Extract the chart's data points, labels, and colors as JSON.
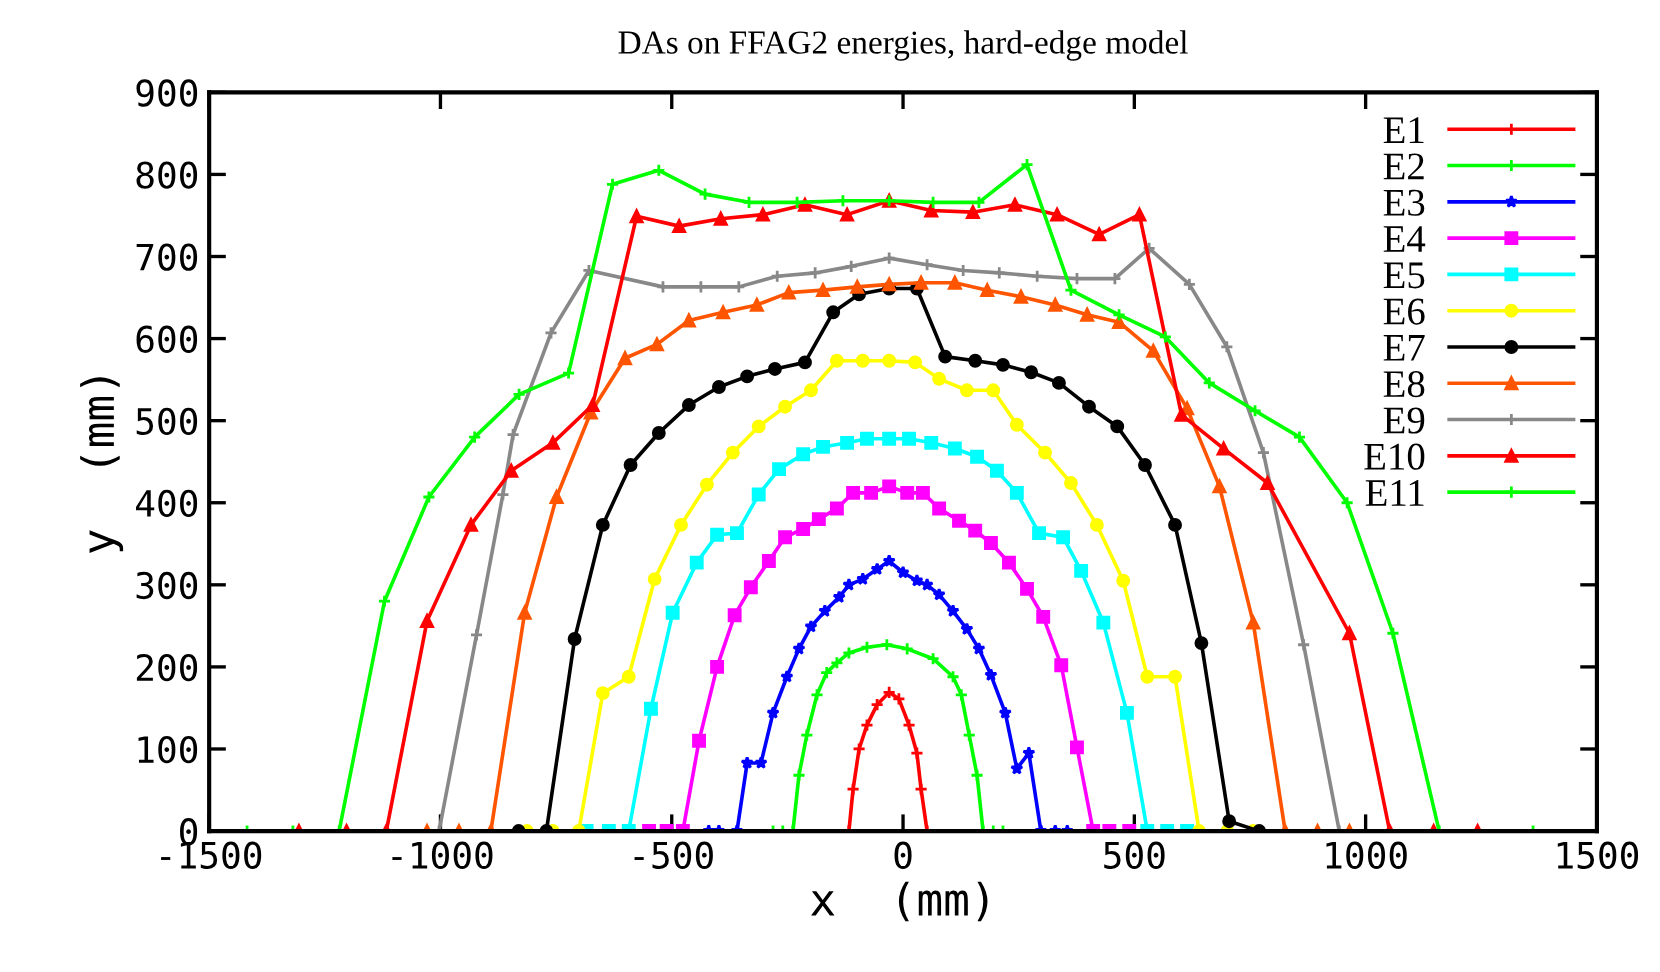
{
  "chart_data": {
    "type": "line",
    "title": "DAs on FFAG2 energies, hard-edge model",
    "xlabel": "x  (mm)",
    "ylabel": "y  (mm)",
    "xlim": [
      -1500,
      1500
    ],
    "xticks": [
      -1500,
      -1000,
      -500,
      0,
      500,
      1000,
      1500
    ],
    "ylim": [
      0,
      900
    ],
    "yticks": [
      0,
      100,
      200,
      300,
      400,
      500,
      600,
      700,
      800,
      900
    ],
    "grid": false,
    "legend": "top right",
    "series": [
      {
        "name": "E1",
        "color": "#ff0000",
        "marker": "cross",
        "x": [
          -117,
          -108,
          -95,
          -78,
          -56,
          -30,
          -9,
          13,
          30,
          39,
          52
        ],
        "values": [
          0,
          51,
          100,
          129,
          154,
          169,
          161,
          129,
          95,
          51,
          0
        ]
      },
      {
        "name": "E2",
        "color": "#00ff00",
        "marker": "cross",
        "x": [
          -281,
          -260,
          -238,
          -225,
          -208,
          -186,
          -165,
          -143,
          -117,
          -78,
          -35,
          9,
          65,
          108,
          126,
          143,
          160,
          173,
          195,
          216
        ],
        "values": [
          0,
          0,
          0,
          68,
          117,
          166,
          193,
          205,
          217,
          224,
          227,
          222,
          210,
          188,
          166,
          117,
          68,
          0,
          0,
          0
        ]
      },
      {
        "name": "E3",
        "color": "#0000ff",
        "marker": "star",
        "x": [
          -420,
          -398,
          -359,
          -337,
          -307,
          -281,
          -251,
          -225,
          -199,
          -169,
          -138,
          -117,
          -87,
          -56,
          -30,
          0,
          30,
          52,
          78,
          108,
          138,
          164,
          190,
          221,
          246,
          272,
          298,
          329,
          355
        ],
        "values": [
          0,
          0,
          0,
          83,
          83,
          144,
          188,
          222,
          249,
          268,
          285,
          300,
          307,
          319,
          329,
          315,
          305,
          300,
          288,
          268,
          246,
          222,
          190,
          144,
          76,
          95,
          0,
          0,
          0
        ]
      },
      {
        "name": "E4",
        "color": "#ff00ff",
        "marker": "square",
        "x": [
          -549,
          -511,
          -476,
          -441,
          -402,
          -364,
          -329,
          -290,
          -255,
          -216,
          -182,
          -143,
          -108,
          -69,
          -30,
          9,
          43,
          78,
          121,
          156,
          190,
          229,
          268,
          303,
          342,
          376,
          411,
          446,
          489
        ],
        "values": [
          0,
          0,
          0,
          110,
          200,
          263,
          297,
          329,
          358,
          368,
          380,
          393,
          412,
          412,
          420,
          412,
          412,
          393,
          378,
          366,
          351,
          327,
          295,
          261,
          202,
          102,
          0,
          0,
          0
        ]
      },
      {
        "name": "E5",
        "color": "#00ffff",
        "marker": "square",
        "x": [
          -684,
          -636,
          -593,
          -545,
          -498,
          -446,
          -402,
          -359,
          -312,
          -268,
          -216,
          -173,
          -121,
          -78,
          -30,
          13,
          61,
          112,
          160,
          203,
          246,
          294,
          346,
          385,
          433,
          484,
          528,
          571,
          614
        ],
        "values": [
          0,
          0,
          0,
          149,
          266,
          327,
          361,
          363,
          410,
          441,
          459,
          468,
          473,
          478,
          478,
          478,
          473,
          466,
          456,
          439,
          412,
          363,
          358,
          317,
          254,
          144,
          0,
          0,
          0
        ]
      },
      {
        "name": "E6",
        "color": "#ffff00",
        "marker": "circle",
        "x": [
          -813,
          -757,
          -701,
          -649,
          -593,
          -537,
          -480,
          -424,
          -368,
          -312,
          -255,
          -199,
          -143,
          -87,
          -30,
          26,
          78,
          138,
          195,
          246,
          307,
          363,
          419,
          476,
          528,
          588,
          640,
          701,
          757
        ],
        "values": [
          0,
          0,
          0,
          168,
          188,
          307,
          373,
          422,
          461,
          493,
          517,
          537,
          573,
          573,
          573,
          571,
          551,
          537,
          537,
          495,
          461,
          424,
          373,
          305,
          188,
          188,
          0,
          0,
          0
        ]
      },
      {
        "name": "E7",
        "color": "#000000",
        "marker": "circle",
        "x": [
          -831,
          -771,
          -710,
          -649,
          -589,
          -528,
          -463,
          -398,
          -337,
          -277,
          -212,
          -151,
          -95,
          -30,
          30,
          91,
          156,
          216,
          277,
          337,
          402,
          463,
          523,
          588,
          645,
          705,
          770
        ],
        "values": [
          0,
          0,
          234,
          373,
          446,
          485,
          519,
          541,
          554,
          563,
          571,
          632,
          654,
          661,
          661,
          578,
          573,
          568,
          559,
          546,
          517,
          493,
          446,
          373,
          229,
          12,
          0
        ]
      },
      {
        "name": "E8",
        "color": "#ff5500",
        "marker": "triangle",
        "x": [
          -1029,
          -960,
          -891,
          -818,
          -749,
          -675,
          -601,
          -532,
          -463,
          -389,
          -316,
          -247,
          -173,
          -99,
          -30,
          39,
          112,
          182,
          255,
          329,
          398,
          467,
          541,
          614,
          684,
          757,
          826,
          896,
          965
        ],
        "values": [
          0,
          0,
          0,
          266,
          407,
          510,
          576,
          593,
          622,
          632,
          641,
          656,
          659,
          663,
          666,
          668,
          668,
          659,
          651,
          641,
          629,
          620,
          585,
          515,
          420,
          254,
          0,
          0,
          0
        ]
      },
      {
        "name": "E9",
        "color": "#888888",
        "marker": "cross",
        "x": [
          -1003,
          -922,
          -865,
          -843,
          -761,
          -679,
          -519,
          -437,
          -355,
          -272,
          -190,
          -112,
          -30,
          52,
          130,
          208,
          290,
          376,
          458,
          532,
          619,
          700,
          779,
          866,
          943
        ],
        "values": [
          0,
          239,
          410,
          483,
          607,
          683,
          663,
          663,
          663,
          676,
          680,
          688,
          698,
          690,
          683,
          680,
          676,
          673,
          673,
          710,
          666,
          590,
          461,
          227,
          0
        ]
      },
      {
        "name": "E10",
        "color": "#ff0000",
        "marker": "triangle",
        "x": [
          -1306,
          -1203,
          -1117,
          -1029,
          -934,
          -847,
          -757,
          -671,
          -576,
          -484,
          -394,
          -303,
          -212,
          -121,
          -30,
          61,
          151,
          242,
          333,
          424,
          511,
          602,
          693,
          788,
          965,
          1052,
          1147,
          1242
        ],
        "values": [
          0,
          0,
          0,
          256,
          373,
          439,
          473,
          519,
          749,
          737,
          746,
          751,
          763,
          751,
          768,
          756,
          754,
          763,
          751,
          727,
          751,
          507,
          466,
          424,
          241,
          0,
          0,
          0
        ]
      },
      {
        "name": "E11",
        "color": "#00ff00",
        "marker": "cross",
        "x": [
          -1418,
          -1319,
          -1219,
          -1121,
          -1025,
          -926,
          -830,
          -723,
          -628,
          -528,
          -428,
          -333,
          -229,
          -130,
          -30,
          65,
          164,
          268,
          363,
          467,
          567,
          662,
          761,
          857,
          960,
          1059,
          1159,
          1362
        ],
        "values": [
          0,
          0,
          0,
          280,
          407,
          480,
          532,
          558,
          788,
          805,
          776,
          766,
          766,
          768,
          768,
          766,
          766,
          812,
          659,
          629,
          602,
          546,
          512,
          480,
          400,
          241,
          0,
          0
        ]
      }
    ]
  }
}
